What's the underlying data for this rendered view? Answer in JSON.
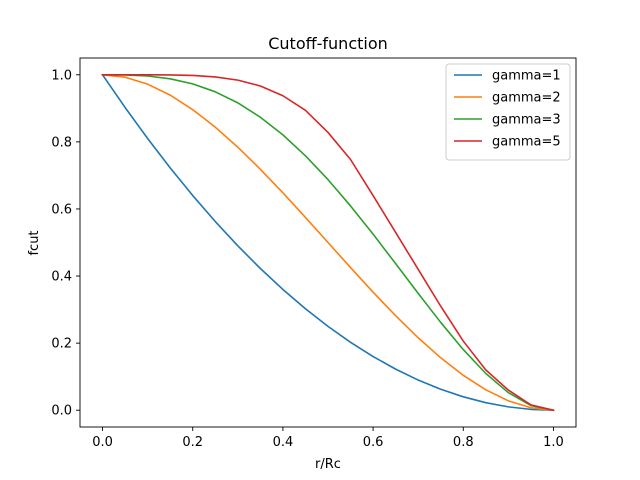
{
  "chart_data": {
    "type": "line",
    "title": "Cutoff-function",
    "xlabel": "r/Rc",
    "ylabel": "fcut",
    "xlim": [
      -0.05,
      1.05
    ],
    "ylim": [
      -0.05,
      1.05
    ],
    "xticks": [
      0.0,
      0.2,
      0.4,
      0.6,
      0.8,
      1.0
    ],
    "xtick_labels": [
      "0.0",
      "0.2",
      "0.4",
      "0.6",
      "0.8",
      "1.0"
    ],
    "yticks": [
      0.0,
      0.2,
      0.4,
      0.6,
      0.8,
      1.0
    ],
    "ytick_labels": [
      "0.0",
      "0.2",
      "0.4",
      "0.6",
      "0.8",
      "1.0"
    ],
    "grid": false,
    "legend_position": "top-right",
    "x": [
      0.0,
      0.05,
      0.1,
      0.15,
      0.2,
      0.25,
      0.3,
      0.35,
      0.4,
      0.45,
      0.5,
      0.55,
      0.6,
      0.65,
      0.7,
      0.75,
      0.8,
      0.85,
      0.9,
      0.95,
      1.0
    ],
    "series": [
      {
        "name": "gamma=1",
        "color": "#1f77b4",
        "values": [
          1.0,
          0.9025,
          0.81,
          0.7225,
          0.64,
          0.5625,
          0.49,
          0.4225,
          0.36,
          0.3025,
          0.25,
          0.2025,
          0.16,
          0.1225,
          0.09,
          0.0625,
          0.04,
          0.0225,
          0.01,
          0.0025,
          0.0
        ]
      },
      {
        "name": "gamma=2",
        "color": "#ff7f0e",
        "values": [
          1.0,
          0.9928,
          0.972,
          0.9393,
          0.896,
          0.8438,
          0.784,
          0.7183,
          0.648,
          0.5748,
          0.5,
          0.4253,
          0.352,
          0.2818,
          0.216,
          0.1563,
          0.104,
          0.0608,
          0.028,
          0.0073,
          0.0
        ]
      },
      {
        "name": "gamma=3",
        "color": "#2ca02c",
        "values": [
          1.0,
          0.9995,
          0.9963,
          0.988,
          0.9728,
          0.9492,
          0.9163,
          0.8735,
          0.8208,
          0.7585,
          0.6875,
          0.609,
          0.5248,
          0.437,
          0.3483,
          0.2617,
          0.1808,
          0.1095,
          0.0523,
          0.014,
          0.0
        ]
      },
      {
        "name": "gamma=5",
        "color": "#d62728",
        "values": [
          1.0,
          1.0,
          0.9999,
          0.9995,
          0.9979,
          0.9935,
          0.9841,
          0.9665,
          0.9375,
          0.894,
          0.8281,
          0.7474,
          0.64,
          0.53,
          0.42,
          0.31,
          0.2062,
          0.12,
          0.06,
          0.016,
          0.0
        ]
      }
    ]
  }
}
